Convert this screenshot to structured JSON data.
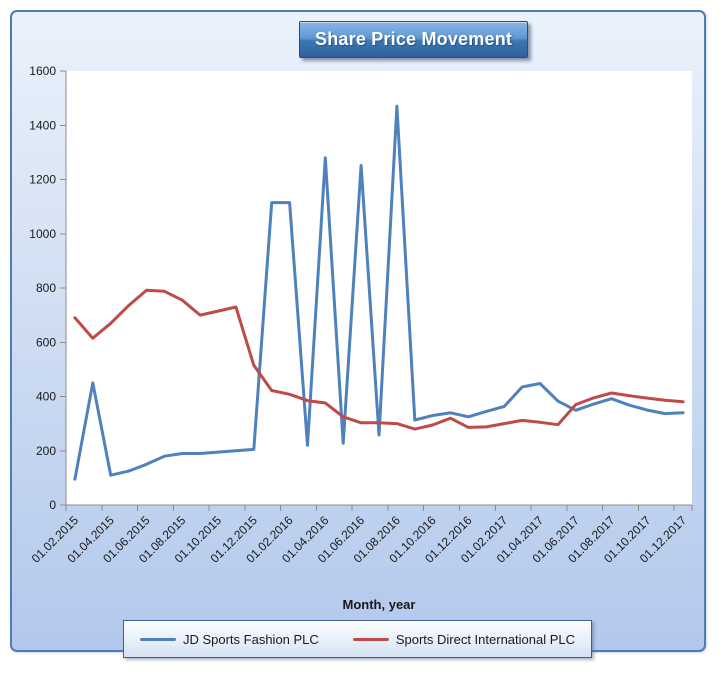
{
  "title": "Share Price Movement",
  "colors": {
    "series1_line": "#4F81BD",
    "series2_line": "#BE4B48",
    "frame_border": "#4E7BB5",
    "frame_bg_top": "#EAF2FB",
    "frame_bg_bottom": "#B2C8EC",
    "title_gradient_top": "#8AB6E6",
    "title_gradient_bottom": "#2F619B",
    "title_text": "#FFFFFF",
    "plot_bg": "#FFFFFF",
    "axis_line": "#8C8C8C",
    "label_text": "#1A1A1A",
    "legend_border": "#40618F"
  },
  "chart_data": {
    "type": "line",
    "title": "Share Price Movement",
    "xlabel": "Month, year",
    "ylabel": "",
    "ylim": [
      0,
      1600
    ],
    "grid": false,
    "legend_position": "bottom",
    "y_axis": {
      "min": 0,
      "max": 1600,
      "step": 200
    },
    "x": [
      "01.02.2015",
      "01.03.2015",
      "01.04.2015",
      "01.05.2015",
      "01.06.2015",
      "01.07.2015",
      "01.08.2015",
      "01.09.2015",
      "01.10.2015",
      "01.11.2015",
      "01.12.2015",
      "01.01.2016",
      "01.02.2016",
      "01.03.2016",
      "01.04.2016",
      "01.05.2016",
      "01.06.2016",
      "01.07.2016",
      "01.08.2016",
      "01.09.2016",
      "01.10.2016",
      "01.11.2016",
      "01.12.2016",
      "01.01.2017",
      "01.02.2017",
      "01.03.2017",
      "01.04.2017",
      "01.05.2017",
      "01.06.2017",
      "01.07.2017",
      "01.08.2017",
      "01.09.2017",
      "01.10.2017",
      "01.11.2017",
      "01.12.2017"
    ],
    "x_tick_labels": [
      "01.02.2015",
      "01.04.2015",
      "01.06.2015",
      "01.08.2015",
      "01.10.2015",
      "01.12.2015",
      "01.02.2016",
      "01.04.2016",
      "01.06.2016",
      "01.08.2016",
      "01.10.2016",
      "01.12.2016",
      "01.02.2017",
      "01.04.2017",
      "01.06.2017",
      "01.08.2017",
      "01.10.2017",
      "01.12.2017"
    ],
    "series": [
      {
        "name": "JD Sports Fashion PLC",
        "color": "#4F81BD",
        "data_name": "jd-sports-line",
        "values": [
          95,
          450,
          110,
          125,
          150,
          180,
          190,
          190,
          195,
          200,
          205,
          1115,
          1115,
          220,
          1280,
          228,
          1252,
          258,
          1470,
          313,
          330,
          340,
          325,
          345,
          363,
          435,
          448,
          383,
          349,
          372,
          392,
          368,
          350,
          337,
          340
        ]
      },
      {
        "name": "Sports Direct International PLC",
        "color": "#BE4B48",
        "data_name": "sports-direct-line",
        "values": [
          690,
          615,
          670,
          735,
          792,
          788,
          755,
          700,
          715,
          730,
          515,
          422,
          408,
          385,
          376,
          325,
          303,
          303,
          300,
          280,
          295,
          320,
          286,
          288,
          300,
          312,
          305,
          296,
          370,
          395,
          413,
          403,
          394,
          386,
          381
        ]
      }
    ]
  }
}
